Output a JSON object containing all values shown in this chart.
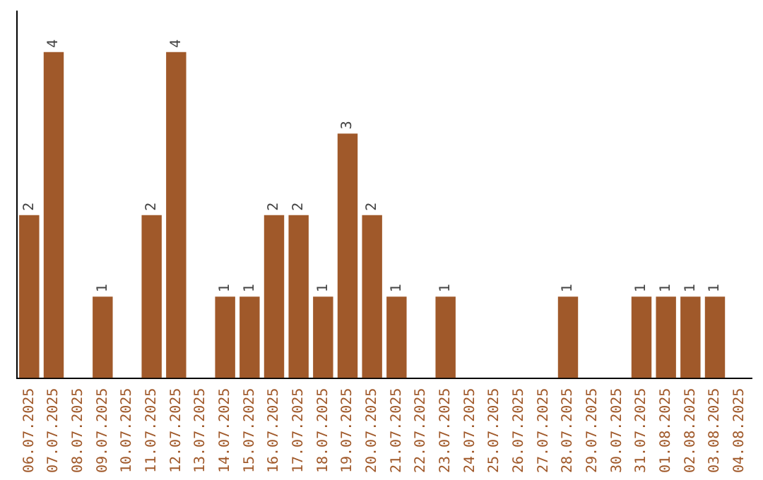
{
  "chart_data": {
    "type": "bar",
    "categories": [
      "06.07.2025",
      "07.07.2025",
      "08.07.2025",
      "09.07.2025",
      "10.07.2025",
      "11.07.2025",
      "12.07.2025",
      "13.07.2025",
      "14.07.2025",
      "15.07.2025",
      "16.07.2025",
      "17.07.2025",
      "18.07.2025",
      "19.07.2025",
      "20.07.2025",
      "21.07.2025",
      "22.07.2025",
      "23.07.2025",
      "24.07.2025",
      "25.07.2025",
      "26.07.2025",
      "27.07.2025",
      "28.07.2025",
      "29.07.2025",
      "30.07.2025",
      "31.07.2025",
      "01.08.2025",
      "02.08.2025",
      "03.08.2025",
      "04.08.2025"
    ],
    "values": [
      2,
      4,
      0,
      1,
      0,
      2,
      4,
      0,
      1,
      1,
      2,
      2,
      1,
      3,
      2,
      1,
      0,
      1,
      0,
      0,
      0,
      0,
      1,
      0,
      0,
      1,
      1,
      1,
      1,
      0
    ],
    "value_labels": [
      "2",
      "4",
      null,
      "1",
      null,
      "2",
      "4",
      null,
      "1",
      "1",
      "2",
      "2",
      "1",
      "3",
      "2",
      "1",
      null,
      "1",
      null,
      null,
      null,
      null,
      "1",
      null,
      null,
      "1",
      "1",
      "1",
      "1",
      null
    ],
    "color": "#a0592a",
    "tick_labels": "x",
    "grid": false,
    "legend": false
  }
}
